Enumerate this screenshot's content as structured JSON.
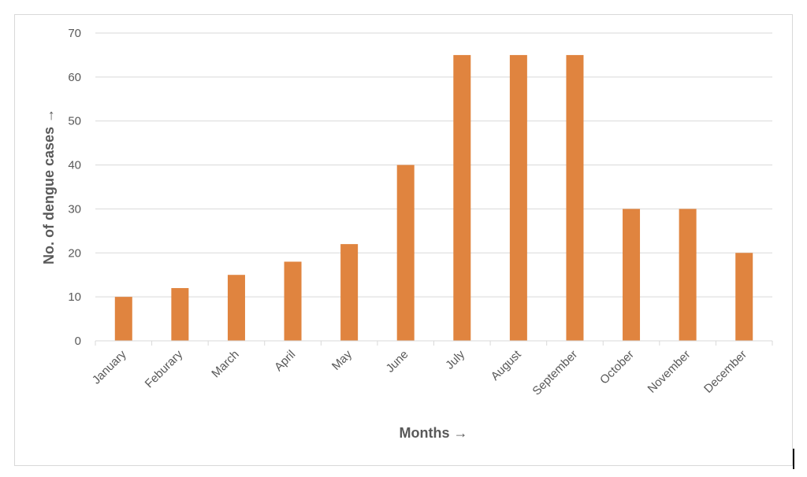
{
  "chart_data": {
    "type": "bar",
    "categories": [
      "January",
      "Feburary",
      "March",
      "April",
      "May",
      "June",
      "July",
      "August",
      "September",
      "October",
      "November",
      "December"
    ],
    "values": [
      10,
      12,
      15,
      18,
      22,
      40,
      65,
      65,
      65,
      30,
      30,
      20
    ],
    "title": "",
    "xlabel": "Months →",
    "ylabel": "No. of dengue cases →",
    "ylim": [
      0,
      70
    ],
    "yticks": [
      0,
      10,
      20,
      30,
      40,
      50,
      60,
      70
    ],
    "grid": true,
    "bar_color": "#E0843F",
    "grid_color": "#d9d9d9",
    "text_color": "#595959"
  }
}
